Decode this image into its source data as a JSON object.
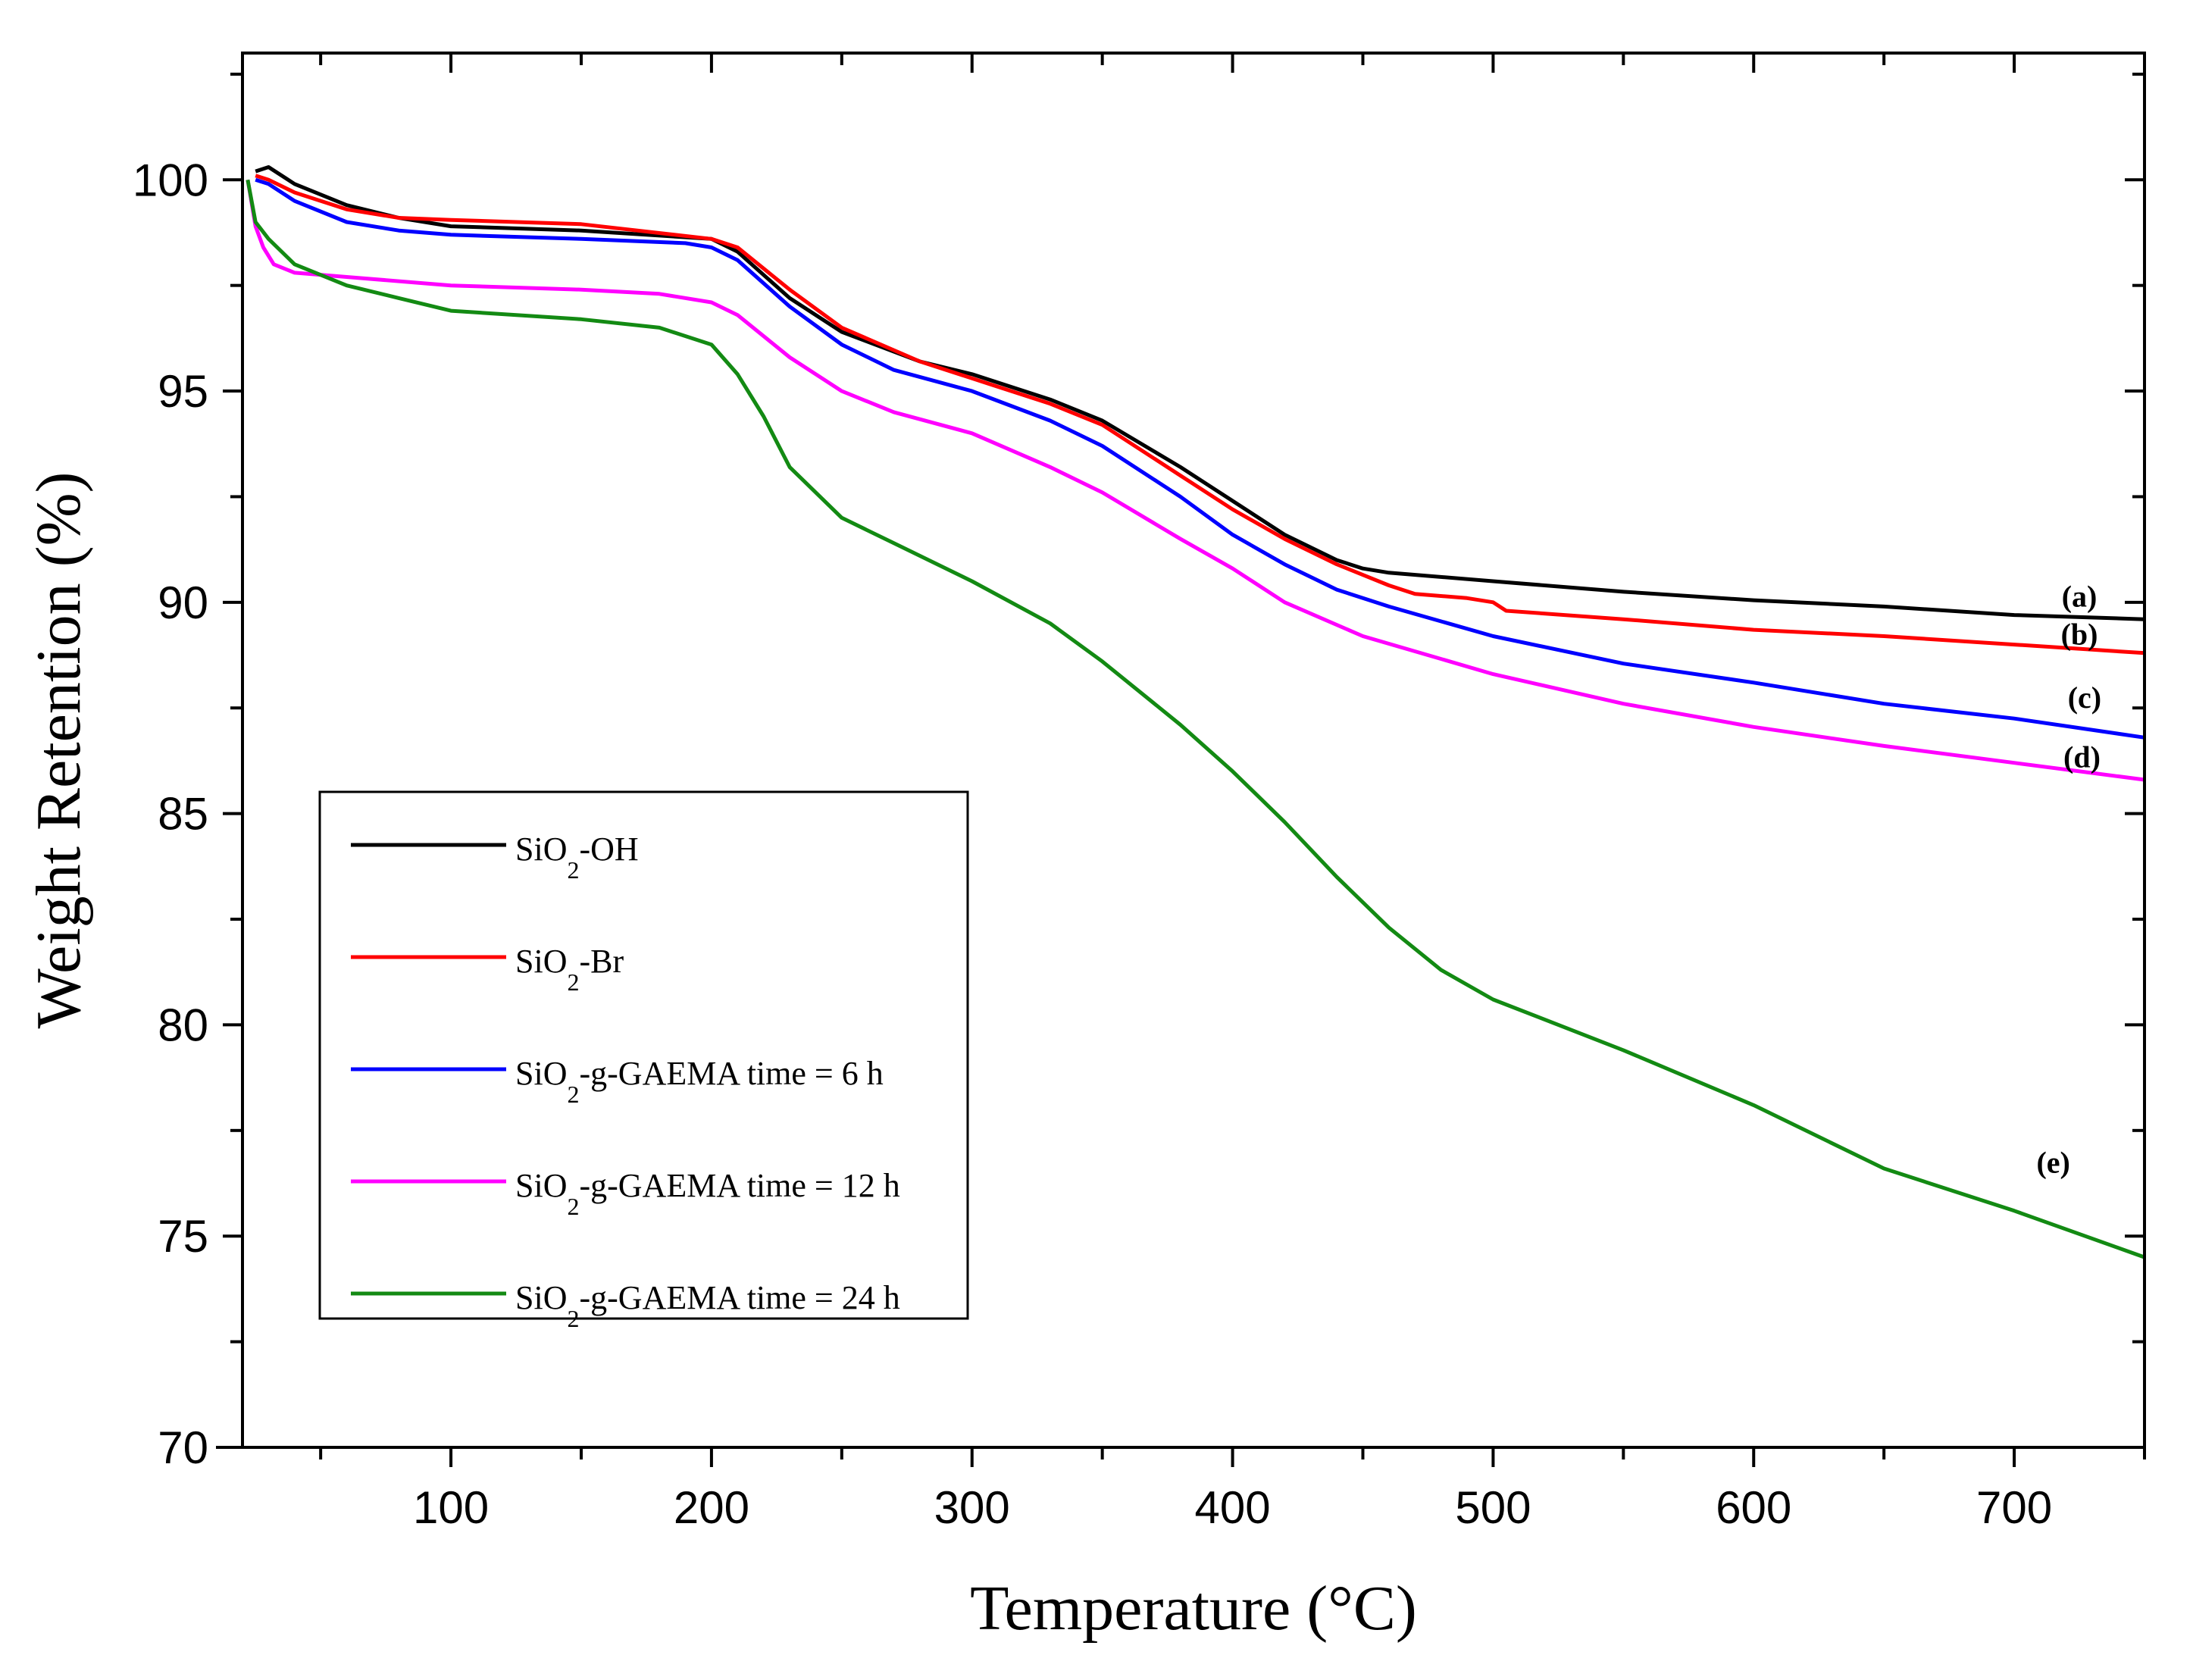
{
  "chart_data": {
    "type": "line",
    "title": "",
    "xlabel": "Temperature (°C)",
    "ylabel": "Weight Retention (%)",
    "xlim": [
      20,
      750
    ],
    "ylim": [
      70,
      103
    ],
    "xticks": [
      100,
      200,
      300,
      400,
      500,
      600,
      700
    ],
    "yticks": [
      70,
      75,
      80,
      85,
      90,
      95,
      100
    ],
    "legend_position": "lower-left",
    "series": [
      {
        "name": "SiO2-OH",
        "legend": {
          "base": "SiO",
          "sub": "2",
          "rest": "-OH"
        },
        "label": "(a)",
        "color": "#000000",
        "x": [
          25,
          30,
          40,
          60,
          80,
          100,
          150,
          200,
          210,
          230,
          250,
          280,
          300,
          330,
          350,
          380,
          400,
          420,
          440,
          450,
          460,
          500,
          550,
          600,
          650,
          700,
          750
        ],
        "y": [
          100.2,
          100.3,
          99.9,
          99.4,
          99.1,
          98.9,
          98.8,
          98.6,
          98.3,
          97.2,
          96.4,
          95.7,
          95.4,
          94.8,
          94.3,
          93.2,
          92.4,
          91.6,
          91.0,
          90.8,
          90.7,
          90.5,
          90.25,
          90.05,
          89.9,
          89.7,
          89.6
        ]
      },
      {
        "name": "SiO2-Br",
        "legend": {
          "base": "SiO",
          "sub": "2",
          "rest": "-Br"
        },
        "label": "(b)",
        "color": "#ff0000",
        "x": [
          25,
          30,
          40,
          60,
          80,
          100,
          150,
          200,
          210,
          230,
          250,
          280,
          300,
          330,
          350,
          380,
          400,
          420,
          440,
          460,
          470,
          490,
          500,
          505,
          550,
          600,
          650,
          700,
          750
        ],
        "y": [
          100.1,
          100.0,
          99.7,
          99.3,
          99.1,
          99.05,
          98.95,
          98.6,
          98.4,
          97.4,
          96.5,
          95.7,
          95.3,
          94.7,
          94.2,
          93.0,
          92.2,
          91.5,
          90.9,
          90.4,
          90.2,
          90.1,
          90.0,
          89.8,
          89.6,
          89.35,
          89.2,
          89.0,
          88.8
        ]
      },
      {
        "name": "SiO2-g-GAEMA time = 6 h",
        "legend": {
          "base": "SiO",
          "sub": "2",
          "rest": "-g-GAEMA time = 6 h"
        },
        "label": "(c)",
        "color": "#0000ff",
        "x": [
          25,
          30,
          40,
          60,
          80,
          100,
          150,
          190,
          200,
          210,
          230,
          250,
          270,
          300,
          330,
          350,
          380,
          400,
          420,
          440,
          460,
          500,
          550,
          600,
          650,
          700,
          750
        ],
        "y": [
          100.0,
          99.9,
          99.5,
          99.0,
          98.8,
          98.7,
          98.6,
          98.5,
          98.4,
          98.1,
          97.0,
          96.1,
          95.5,
          95.0,
          94.3,
          93.7,
          92.5,
          91.6,
          90.9,
          90.3,
          89.9,
          89.2,
          88.55,
          88.1,
          87.6,
          87.25,
          86.8
        ]
      },
      {
        "name": "SiO2-g-GAEMA time = 12 h",
        "legend": {
          "base": "SiO",
          "sub": "2",
          "rest": "-g-GAEMA time = 12 h"
        },
        "label": "(d)",
        "color": "#ff00ff",
        "x": [
          22,
          25,
          28,
          32,
          40,
          60,
          100,
          150,
          180,
          200,
          210,
          230,
          250,
          270,
          300,
          330,
          350,
          380,
          400,
          420,
          450,
          500,
          550,
          600,
          650,
          700,
          750
        ],
        "y": [
          100.0,
          98.9,
          98.4,
          98.0,
          97.8,
          97.7,
          97.5,
          97.4,
          97.3,
          97.1,
          96.8,
          95.8,
          95.0,
          94.5,
          94.0,
          93.2,
          92.6,
          91.5,
          90.8,
          90.0,
          89.2,
          88.3,
          87.6,
          87.05,
          86.6,
          86.2,
          85.8
        ]
      },
      {
        "name": "SiO2-g-GAEMA time = 24 h",
        "legend": {
          "base": "SiO",
          "sub": "2",
          "rest": "-g-GAEMA time = 24 h"
        },
        "label": "(e)",
        "color": "#138a13",
        "x": [
          22,
          25,
          30,
          40,
          60,
          80,
          100,
          150,
          180,
          200,
          210,
          220,
          230,
          250,
          270,
          300,
          330,
          350,
          380,
          400,
          420,
          440,
          460,
          480,
          500,
          550,
          600,
          650,
          700,
          750
        ],
        "y": [
          100.0,
          99.0,
          98.6,
          98.0,
          97.5,
          97.2,
          96.9,
          96.7,
          96.5,
          96.1,
          95.4,
          94.4,
          93.2,
          92.0,
          91.4,
          90.5,
          89.5,
          88.6,
          87.1,
          86.0,
          84.8,
          83.5,
          82.3,
          81.3,
          80.6,
          79.4,
          78.1,
          76.6,
          75.6,
          74.5
        ]
      }
    ]
  }
}
